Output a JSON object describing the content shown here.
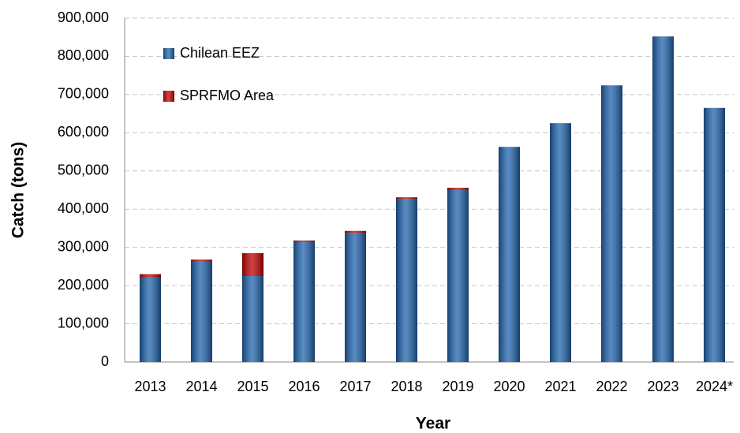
{
  "chart_data": {
    "type": "stacked_bar",
    "x_label": "Year",
    "y_label": "Catch (tons)",
    "categories": [
      "2013",
      "2014",
      "2015",
      "2016",
      "2017",
      "2018",
      "2019",
      "2020",
      "2021",
      "2022",
      "2023",
      "2024*"
    ],
    "series": [
      {
        "name": "Chilean EEZ",
        "color": "#1f64ae",
        "values": [
          222000,
          263000,
          225000,
          314000,
          338000,
          427000,
          451000,
          563000,
          625000,
          724000,
          852000,
          665000
        ]
      },
      {
        "name": "SPRFMO Area",
        "color": "#c00000",
        "values": [
          8000,
          5000,
          60000,
          4000,
          5000,
          4000,
          5000,
          0,
          0,
          0,
          0,
          0
        ]
      }
    ],
    "ylim": [
      0,
      900000
    ],
    "yticks": [
      0,
      {
        "value": 100000,
        "label": "100,000"
      },
      {
        "value": 200000,
        "label": "200,000"
      },
      {
        "value": 300000,
        "label": "300,000"
      },
      {
        "value": 400000,
        "label": "400,000"
      },
      {
        "value": 500000,
        "label": "500,000"
      },
      {
        "value": 600000,
        "label": "600,000"
      },
      {
        "value": 700000,
        "label": "700,000"
      },
      {
        "value": 800000,
        "label": "800,000"
      },
      {
        "value": 900000,
        "label": "900,000"
      }
    ],
    "grid": true,
    "legend": "upper left"
  }
}
